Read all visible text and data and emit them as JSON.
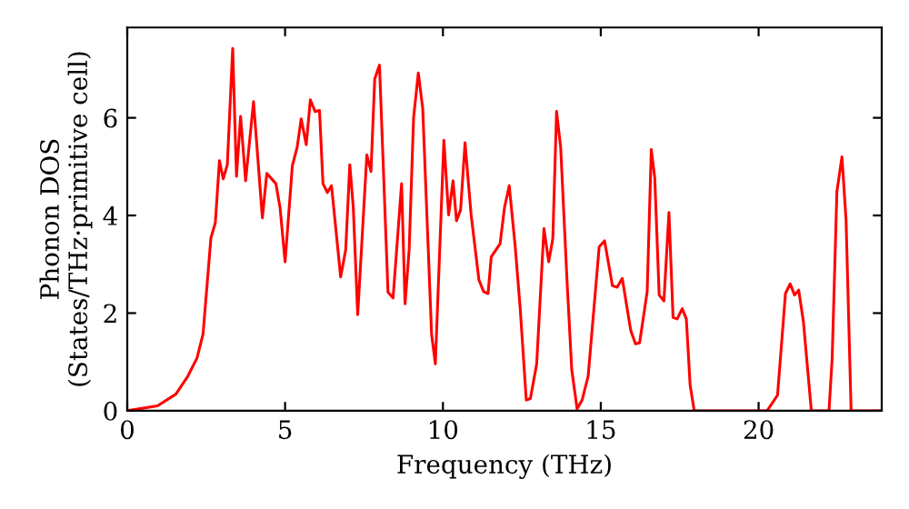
{
  "chart_data": {
    "type": "line",
    "xlabel": "Frequency (THz)",
    "ylabel": "Phonon DOS\n(States/THz·primitive cell)",
    "xlim": [
      0,
      23.9
    ],
    "ylim": [
      0,
      7.85
    ],
    "xticks": [
      0,
      5,
      10,
      15,
      20
    ],
    "yticks": [
      0,
      2,
      4,
      6
    ],
    "grid": false,
    "legend": false,
    "marker": "none",
    "line_style": "solid",
    "series": [
      {
        "color": "#ff0000",
        "x": [
          0,
          0.96,
          1.54,
          1.92,
          2.21,
          2.4,
          2.65,
          2.79,
          2.92,
          3.04,
          3.17,
          3.34,
          3.46,
          3.59,
          3.75,
          4.0,
          4.28,
          4.42,
          4.71,
          4.84,
          5.0,
          5.23,
          5.38,
          5.51,
          5.67,
          5.8,
          5.95,
          6.09,
          6.2,
          6.34,
          6.47,
          6.76,
          6.92,
          7.05,
          7.16,
          7.3,
          7.59,
          7.72,
          7.84,
          7.99,
          8.26,
          8.42,
          8.69,
          8.8,
          8.93,
          9.07,
          9.22,
          9.36,
          9.64,
          9.76,
          10.03,
          10.18,
          10.32,
          10.43,
          10.56,
          10.7,
          10.89,
          11.14,
          11.29,
          11.43,
          11.53,
          11.81,
          11.95,
          12.1,
          12.29,
          12.45,
          12.64,
          12.77,
          12.97,
          13.2,
          13.35,
          13.48,
          13.6,
          13.73,
          13.93,
          14.08,
          14.25,
          14.41,
          14.6,
          14.95,
          15.12,
          15.37,
          15.52,
          15.68,
          15.95,
          16.1,
          16.23,
          16.47,
          16.6,
          16.71,
          16.85,
          17.0,
          17.16,
          17.29,
          17.42,
          17.58,
          17.71,
          17.83,
          17.96,
          20.27,
          20.6,
          20.85,
          21.0,
          21.14,
          21.27,
          21.42,
          21.67,
          22.23,
          22.33,
          22.48,
          22.64,
          22.77,
          22.93,
          23.9
        ],
        "values": [
          0,
          0.1,
          0.34,
          0.71,
          1.08,
          1.57,
          3.54,
          3.85,
          5.12,
          4.75,
          5.04,
          7.42,
          4.8,
          6.03,
          4.71,
          6.33,
          3.95,
          4.86,
          4.65,
          4.16,
          3.05,
          5.02,
          5.39,
          5.98,
          5.45,
          6.37,
          6.13,
          6.15,
          4.65,
          4.47,
          4.61,
          2.74,
          3.3,
          5.04,
          4.16,
          1.97,
          5.24,
          4.9,
          6.8,
          7.08,
          2.43,
          2.31,
          4.65,
          2.19,
          3.3,
          6.0,
          6.92,
          6.19,
          1.57,
          0.96,
          5.54,
          4.01,
          4.71,
          3.89,
          4.12,
          5.49,
          4.03,
          2.68,
          2.44,
          2.4,
          3.15,
          3.42,
          4.16,
          4.61,
          3.36,
          2.07,
          0.22,
          0.25,
          0.96,
          3.73,
          3.05,
          3.52,
          6.13,
          5.39,
          2.68,
          0.84,
          0.04,
          0.22,
          0.71,
          3.36,
          3.48,
          2.56,
          2.53,
          2.71,
          1.64,
          1.37,
          1.39,
          2.44,
          5.35,
          4.77,
          2.37,
          2.25,
          4.06,
          1.91,
          1.88,
          2.09,
          1.88,
          0.53,
          0,
          0,
          0.32,
          2.4,
          2.6,
          2.37,
          2.47,
          1.82,
          0,
          0,
          1.08,
          4.49,
          5.2,
          3.91,
          0,
          0
        ]
      }
    ]
  }
}
